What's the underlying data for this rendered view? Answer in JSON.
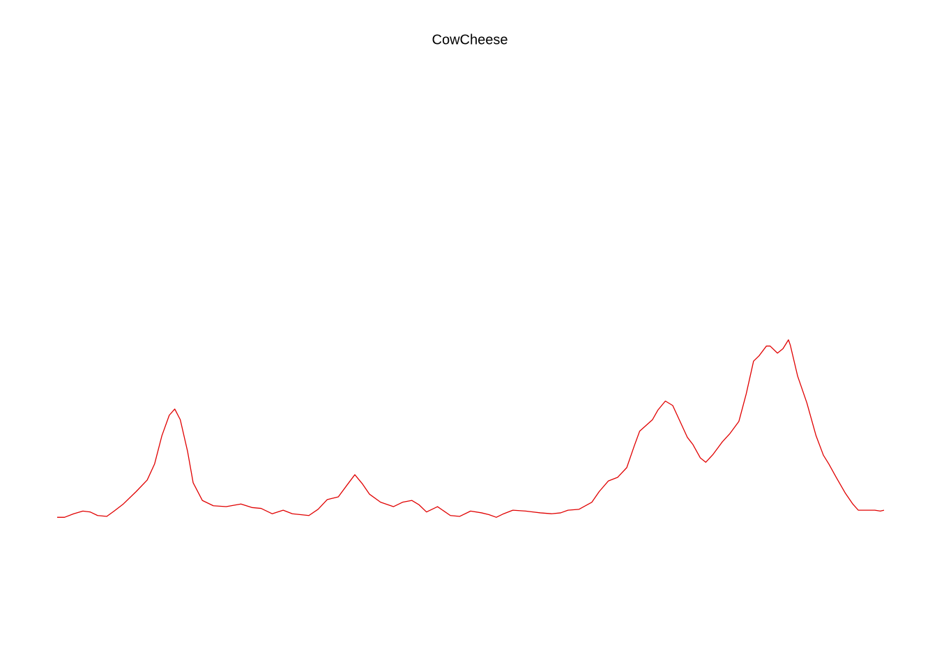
{
  "chart_data": {
    "type": "line",
    "title": "CowCheese",
    "x": [
      1,
      5,
      10,
      15,
      19,
      23,
      28,
      32,
      37,
      44,
      50,
      54,
      58,
      62,
      65,
      68,
      72,
      75,
      80,
      86,
      93,
      101,
      107,
      112,
      118,
      124,
      129,
      138,
      143,
      148,
      154,
      159,
      163,
      167,
      171,
      177,
      184,
      189,
      194,
      198,
      202,
      208,
      215,
      220,
      226,
      232,
      236,
      240,
      244,
      249,
      256,
      264,
      270,
      275,
      279,
      285,
      292,
      296,
      301,
      306,
      311,
      315,
      318,
      325,
      328,
      332,
      336,
      340,
      344,
      347,
      351,
      354,
      358,
      363,
      367,
      372,
      376,
      380,
      383,
      387,
      389,
      393,
      396,
      399,
      400,
      404,
      409,
      414,
      418,
      421,
      425,
      430,
      434,
      437,
      442,
      446,
      449,
      451
    ],
    "series": [
      {
        "color": "#e00000",
        "values": [
          -2.06,
          -2.06,
          -2.02,
          -1.99,
          -2.0,
          -2.04,
          -2.05,
          -1.99,
          -1.91,
          -1.77,
          -1.64,
          -1.46,
          -1.14,
          -0.91,
          -0.84,
          -0.96,
          -1.32,
          -1.67,
          -1.87,
          -1.93,
          -1.94,
          -1.91,
          -1.95,
          -1.96,
          -2.02,
          -1.98,
          -2.02,
          -2.04,
          -1.97,
          -1.86,
          -1.83,
          -1.69,
          -1.58,
          -1.68,
          -1.8,
          -1.89,
          -1.94,
          -1.89,
          -1.87,
          -1.92,
          -2.0,
          -1.94,
          -2.04,
          -2.05,
          -1.99,
          -2.01,
          -2.03,
          -2.06,
          -2.02,
          -1.98,
          -1.99,
          -2.01,
          -2.02,
          -2.01,
          -1.98,
          -1.97,
          -1.89,
          -1.77,
          -1.65,
          -1.61,
          -1.5,
          -1.26,
          -1.09,
          -0.96,
          -0.85,
          -0.75,
          -0.8,
          -0.98,
          -1.16,
          -1.24,
          -1.39,
          -1.44,
          -1.35,
          -1.21,
          -1.12,
          -0.98,
          -0.67,
          -0.3,
          -0.24,
          -0.13,
          -0.13,
          -0.21,
          -0.16,
          -0.06,
          -0.12,
          -0.47,
          -0.77,
          -1.14,
          -1.36,
          -1.46,
          -1.61,
          -1.79,
          -1.91,
          -1.98,
          -1.98,
          -1.98,
          -1.99,
          -1.98
        ]
      }
    ],
    "xlim": [
      1,
      451
    ],
    "ylim": [
      -3,
      3
    ]
  }
}
